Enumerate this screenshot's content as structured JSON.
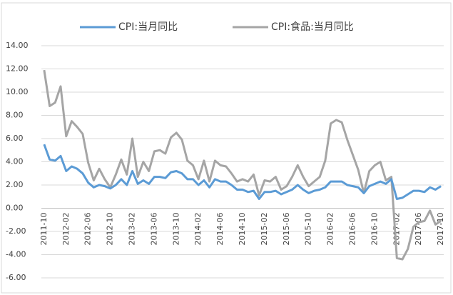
{
  "chart_data": {
    "type": "line",
    "categories": [
      "2011-10",
      null,
      null,
      null,
      "2012-02",
      null,
      null,
      null,
      "2012-06",
      null,
      null,
      null,
      "2012-10",
      null,
      null,
      null,
      "2013-02",
      null,
      null,
      null,
      "2013-06",
      null,
      null,
      null,
      "2013-10",
      null,
      null,
      null,
      "2014-02",
      null,
      null,
      null,
      "2014-06",
      null,
      null,
      null,
      "2014-10",
      null,
      null,
      null,
      "2015-02",
      null,
      null,
      null,
      "2015-06",
      null,
      null,
      null,
      "2015-10",
      null,
      null,
      null,
      "2016-02",
      null,
      null,
      null,
      "2016-06",
      null,
      null,
      null,
      "2016-10",
      null,
      null,
      null,
      "2017-02",
      null,
      null,
      null,
      "2017-06",
      null,
      null,
      null,
      "2017-10"
    ],
    "series": [
      {
        "name": "CPI:当月同比",
        "color": "#5b9bd5",
        "values": [
          5.5,
          4.2,
          4.1,
          4.5,
          3.2,
          3.6,
          3.4,
          3.0,
          2.2,
          1.8,
          2.0,
          1.9,
          1.7,
          2.0,
          2.5,
          2.0,
          3.2,
          2.1,
          2.4,
          2.1,
          2.7,
          2.7,
          2.6,
          3.1,
          3.2,
          3.0,
          2.5,
          2.5,
          2.0,
          2.4,
          1.8,
          2.5,
          2.3,
          2.3,
          2.0,
          1.6,
          1.6,
          1.4,
          1.5,
          0.8,
          1.4,
          1.4,
          1.5,
          1.2,
          1.4,
          1.6,
          2.0,
          1.6,
          1.3,
          1.5,
          1.6,
          1.8,
          2.3,
          2.3,
          2.3,
          2.0,
          1.9,
          1.8,
          1.3,
          1.9,
          2.1,
          2.3,
          2.1,
          2.5,
          0.8,
          0.9,
          1.2,
          1.5,
          1.5,
          1.4,
          1.8,
          1.6,
          1.9
        ]
      },
      {
        "name": "CPI:食品:当月同比",
        "color": "#a5a5a5",
        "values": [
          11.9,
          8.8,
          9.1,
          10.5,
          6.2,
          7.5,
          7.0,
          6.4,
          3.9,
          2.4,
          3.4,
          2.5,
          1.8,
          2.9,
          4.2,
          2.9,
          6.0,
          2.7,
          4.0,
          3.2,
          4.9,
          5.0,
          4.7,
          6.1,
          6.5,
          5.9,
          4.1,
          3.7,
          2.5,
          4.1,
          2.3,
          4.1,
          3.7,
          3.6,
          3.0,
          2.3,
          2.5,
          2.3,
          2.9,
          1.1,
          2.4,
          2.3,
          2.7,
          1.6,
          1.9,
          2.7,
          3.7,
          2.7,
          1.9,
          2.3,
          2.7,
          4.1,
          7.3,
          7.6,
          7.4,
          5.9,
          4.6,
          3.3,
          1.3,
          3.2,
          3.7,
          4.0,
          2.4,
          2.7,
          -4.3,
          -4.4,
          -3.5,
          -1.6,
          -1.2,
          -1.1,
          -0.2,
          -1.4,
          -1.1
        ]
      }
    ],
    "ylim": [
      -6,
      14
    ],
    "yticks": [
      {
        "value": -6,
        "label": "-6.00"
      },
      {
        "value": -4,
        "label": "-4.00"
      },
      {
        "value": -2,
        "label": "-2.00"
      },
      {
        "value": 0,
        "label": "0.00"
      },
      {
        "value": 2,
        "label": "2.00"
      },
      {
        "value": 4,
        "label": "4.00"
      },
      {
        "value": 6,
        "label": "6.00"
      },
      {
        "value": 8,
        "label": "8.00"
      },
      {
        "value": 10,
        "label": "10.00"
      },
      {
        "value": 12,
        "label": "12.00"
      },
      {
        "value": 14,
        "label": "14.00"
      }
    ],
    "grid": true
  }
}
